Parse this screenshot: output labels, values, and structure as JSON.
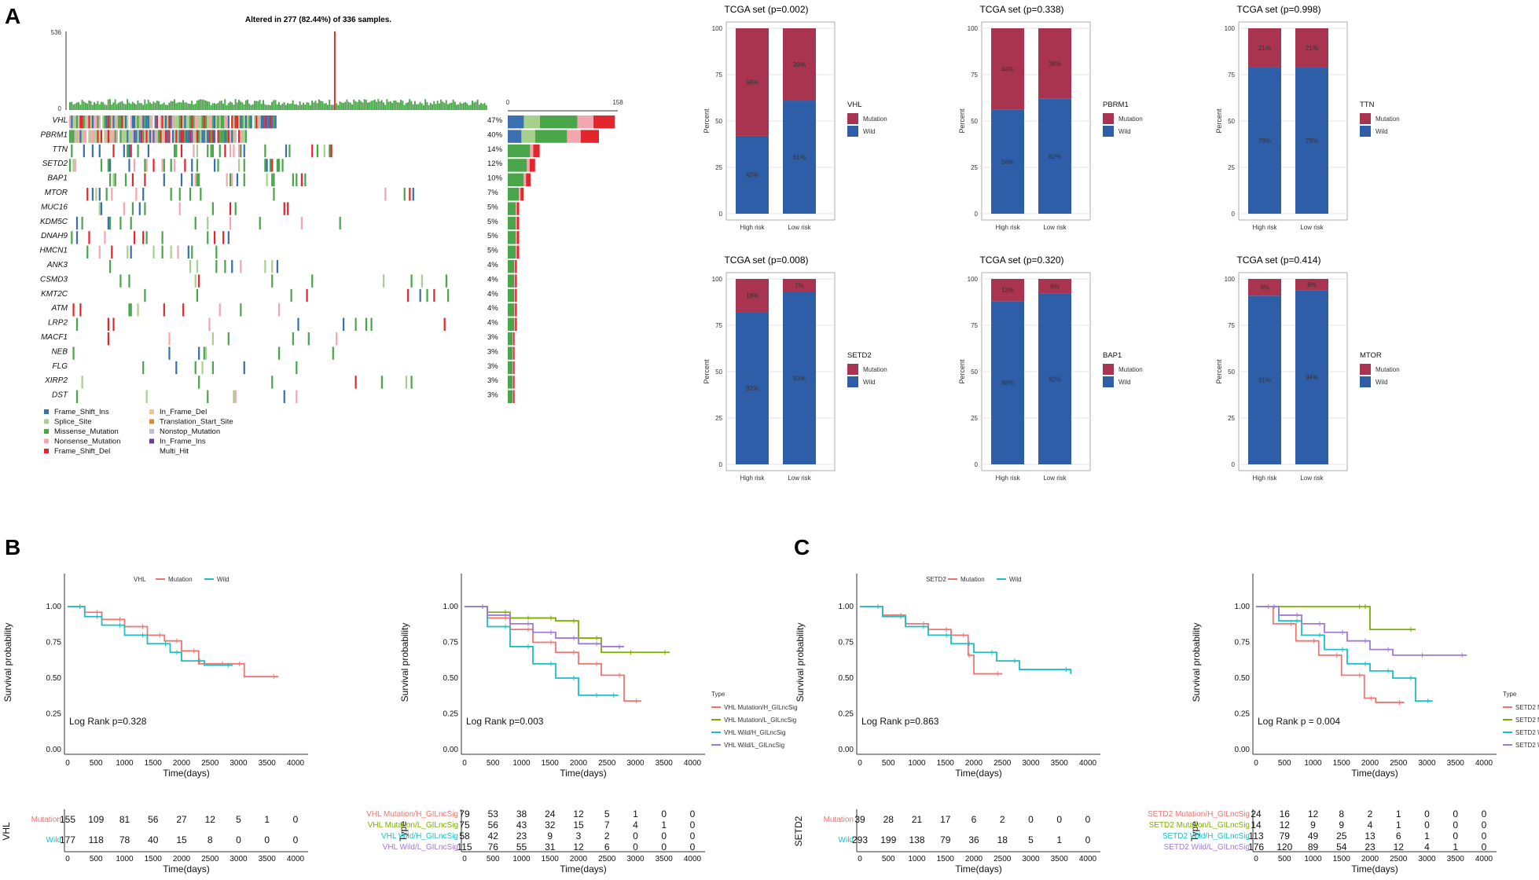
{
  "panels": {
    "a": "A",
    "b": "B",
    "c": "C"
  },
  "oncoplot": {
    "title": "Altered in 277 (82.44%) of 336 samples.",
    "tmb_ymax": "536",
    "tmb_ymin": "0",
    "bar_min": "0",
    "bar_max": "158",
    "genes": [
      {
        "name": "VHL",
        "pct": "47%",
        "freq": 0.47
      },
      {
        "name": "PBRM1",
        "pct": "40%",
        "freq": 0.4
      },
      {
        "name": "TTN",
        "pct": "14%",
        "freq": 0.14
      },
      {
        "name": "SETD2",
        "pct": "12%",
        "freq": 0.12
      },
      {
        "name": "BAP1",
        "pct": "10%",
        "freq": 0.1
      },
      {
        "name": "MTOR",
        "pct": "7%",
        "freq": 0.07
      },
      {
        "name": "MUC16",
        "pct": "5%",
        "freq": 0.05
      },
      {
        "name": "KDM5C",
        "pct": "5%",
        "freq": 0.05
      },
      {
        "name": "DNAH9",
        "pct": "5%",
        "freq": 0.05
      },
      {
        "name": "HMCN1",
        "pct": "5%",
        "freq": 0.05
      },
      {
        "name": "ANK3",
        "pct": "4%",
        "freq": 0.04
      },
      {
        "name": "CSMD3",
        "pct": "4%",
        "freq": 0.04
      },
      {
        "name": "KMT2C",
        "pct": "4%",
        "freq": 0.04
      },
      {
        "name": "ATM",
        "pct": "4%",
        "freq": 0.04
      },
      {
        "name": "LRP2",
        "pct": "4%",
        "freq": 0.04
      },
      {
        "name": "MACF1",
        "pct": "3%",
        "freq": 0.03
      },
      {
        "name": "NEB",
        "pct": "3%",
        "freq": 0.03
      },
      {
        "name": "FLG",
        "pct": "3%",
        "freq": 0.03
      },
      {
        "name": "XIRP2",
        "pct": "3%",
        "freq": 0.03
      },
      {
        "name": "DST",
        "pct": "3%",
        "freq": 0.03
      }
    ],
    "legend": [
      {
        "label": "Frame_Shift_Ins",
        "color": "#3a6fb0"
      },
      {
        "label": "Splice_Site",
        "color": "#a8d08d"
      },
      {
        "label": "Missense_Mutation",
        "color": "#4aa64a"
      },
      {
        "label": "Nonsense_Mutation",
        "color": "#f4a6b0"
      },
      {
        "label": "Frame_Shift_Del",
        "color": "#e3262b"
      },
      {
        "label": "In_Frame_Del",
        "color": "#f8c38a"
      },
      {
        "label": "Translation_Start_Site",
        "color": "#e0883a"
      },
      {
        "label": "Nonstop_Mutation",
        "color": "#c8b4dc"
      },
      {
        "label": "In_Frame_Ins",
        "color": "#6a3d9a"
      },
      {
        "label": "Multi_Hit",
        "color": "#111111"
      }
    ]
  },
  "chart_data": [
    {
      "type": "bar",
      "title": "TCGA set (p=0.002)",
      "gene": "VHL",
      "ylabel": "Percent",
      "categories": [
        "High risk",
        "Low risk"
      ],
      "series": [
        {
          "name": "Mutation",
          "values": [
            58,
            39
          ],
          "labels": [
            "58%",
            "39%"
          ]
        },
        {
          "name": "Wild",
          "values": [
            42,
            61
          ],
          "labels": [
            "42%",
            "61%"
          ]
        }
      ],
      "yticks": [
        "0",
        "25",
        "50",
        "75",
        "100"
      ],
      "ylim": [
        0,
        100
      ]
    },
    {
      "type": "bar",
      "title": "TCGA set (p=0.338)",
      "gene": "PBRM1",
      "ylabel": "Percent",
      "categories": [
        "High risk",
        "Low risk"
      ],
      "series": [
        {
          "name": "Mutation",
          "values": [
            44,
            38
          ],
          "labels": [
            "44%",
            "38%"
          ]
        },
        {
          "name": "Wild",
          "values": [
            56,
            62
          ],
          "labels": [
            "56%",
            "62%"
          ]
        }
      ],
      "yticks": [
        "0",
        "25",
        "50",
        "75",
        "100"
      ],
      "ylim": [
        0,
        100
      ]
    },
    {
      "type": "bar",
      "title": "TCGA set (p=0.998)",
      "gene": "TTN",
      "ylabel": "Percent",
      "categories": [
        "High risk",
        "Low risk"
      ],
      "series": [
        {
          "name": "Mutation",
          "values": [
            21,
            21
          ],
          "labels": [
            "21%",
            "21%"
          ]
        },
        {
          "name": "Wild",
          "values": [
            79,
            79
          ],
          "labels": [
            "79%",
            "79%"
          ]
        }
      ],
      "yticks": [
        "0",
        "25",
        "50",
        "75",
        "100"
      ],
      "ylim": [
        0,
        100
      ]
    },
    {
      "type": "bar",
      "title": "TCGA set (p=0.008)",
      "gene": "SETD2",
      "ylabel": "Percent",
      "categories": [
        "High risk",
        "Low risk"
      ],
      "series": [
        {
          "name": "Mutation",
          "values": [
            18,
            7
          ],
          "labels": [
            "18%",
            "7%"
          ]
        },
        {
          "name": "Wild",
          "values": [
            82,
            93
          ],
          "labels": [
            "82%",
            "93%"
          ]
        }
      ],
      "yticks": [
        "0",
        "25",
        "50",
        "75",
        "100"
      ],
      "ylim": [
        0,
        100
      ]
    },
    {
      "type": "bar",
      "title": "TCGA set (p=0.320)",
      "gene": "BAP1",
      "ylabel": "Percent",
      "categories": [
        "High risk",
        "Low risk"
      ],
      "series": [
        {
          "name": "Mutation",
          "values": [
            12,
            8
          ],
          "labels": [
            "12%",
            "8%"
          ]
        },
        {
          "name": "Wild",
          "values": [
            88,
            92
          ],
          "labels": [
            "88%",
            "92%"
          ]
        }
      ],
      "yticks": [
        "0",
        "25",
        "50",
        "75",
        "100"
      ],
      "ylim": [
        0,
        100
      ]
    },
    {
      "type": "bar",
      "title": "TCGA set (p=0.414)",
      "gene": "MTOR",
      "ylabel": "Percent",
      "categories": [
        "High risk",
        "Low risk"
      ],
      "series": [
        {
          "name": "Mutation",
          "values": [
            9,
            6
          ],
          "labels": [
            "9%",
            "6%"
          ]
        },
        {
          "name": "Wild",
          "values": [
            91,
            94
          ],
          "labels": [
            "91%",
            "94%"
          ]
        }
      ],
      "yticks": [
        "0",
        "25",
        "50",
        "75",
        "100"
      ],
      "ylim": [
        0,
        100
      ]
    },
    {
      "type": "line",
      "title": "VHL",
      "xlabel": "Time(days)",
      "ylabel": "Survival probability",
      "pval": "Log Rank p=0.328",
      "risk_title": "VHL",
      "xticks": [
        "0",
        "500",
        "1000",
        "1500",
        "2000",
        "2500",
        "3000",
        "3500",
        "4000"
      ],
      "yticks": [
        "0.00",
        "0.25",
        "0.50",
        "0.75",
        "1.00"
      ],
      "series": [
        {
          "name": "Mutation",
          "color": "#f07470",
          "x": [
            0,
            300,
            600,
            1000,
            1400,
            1700,
            2000,
            2300,
            2800,
            3100,
            3700
          ],
          "y": [
            1,
            0.96,
            0.91,
            0.86,
            0.8,
            0.76,
            0.69,
            0.6,
            0.6,
            0.51,
            0.51
          ],
          "risk": [
            "155",
            "109",
            "81",
            "56",
            "27",
            "12",
            "5",
            "1",
            "0"
          ]
        },
        {
          "name": "Wild",
          "color": "#1bbfc4",
          "x": [
            0,
            300,
            600,
            1000,
            1400,
            1800,
            2000,
            2400,
            2900
          ],
          "y": [
            1,
            0.93,
            0.87,
            0.8,
            0.74,
            0.68,
            0.62,
            0.59,
            0.59
          ],
          "risk": [
            "177",
            "118",
            "78",
            "40",
            "15",
            "8",
            "0",
            "0",
            "0"
          ]
        }
      ]
    },
    {
      "type": "line",
      "title": "Type",
      "xlabel": "Time(days)",
      "ylabel": "Survival probability",
      "pval": "Log Rank p=0.003",
      "risk_title": "Type",
      "xticks": [
        "0",
        "500",
        "1000",
        "1500",
        "2000",
        "2500",
        "3000",
        "3500",
        "4000"
      ],
      "yticks": [
        "0.00",
        "0.25",
        "0.50",
        "0.75",
        "1.00"
      ],
      "series": [
        {
          "name": "VHL Mutation/H_GILncSig",
          "color": "#f07470",
          "x": [
            0,
            400,
            800,
            1200,
            1600,
            2000,
            2400,
            2800,
            3100
          ],
          "y": [
            1,
            0.92,
            0.84,
            0.75,
            0.68,
            0.6,
            0.52,
            0.34,
            0.34
          ],
          "risk": [
            "79",
            "53",
            "38",
            "24",
            "12",
            "5",
            "1",
            "0",
            "0"
          ]
        },
        {
          "name": "VHL Mutation/L_GILncSig",
          "color": "#7cae00",
          "x": [
            0,
            400,
            800,
            1200,
            1600,
            2000,
            2400,
            3000,
            3600
          ],
          "y": [
            1,
            0.96,
            0.92,
            0.92,
            0.9,
            0.78,
            0.68,
            0.68,
            0.68
          ],
          "risk": [
            "75",
            "56",
            "43",
            "32",
            "15",
            "7",
            "4",
            "1",
            "0"
          ]
        },
        {
          "name": "VHL Wild/H_GILncSig",
          "color": "#1bbfc4",
          "x": [
            0,
            400,
            800,
            1200,
            1600,
            2000,
            2400,
            2700
          ],
          "y": [
            1,
            0.86,
            0.72,
            0.6,
            0.5,
            0.38,
            0.38,
            0.38
          ],
          "risk": [
            "58",
            "42",
            "23",
            "9",
            "3",
            "2",
            "0",
            "0",
            "0"
          ]
        },
        {
          "name": "VHL Wild/L_GILncSig",
          "color": "#a07ad8",
          "x": [
            0,
            400,
            800,
            1200,
            1600,
            2000,
            2400,
            2800
          ],
          "y": [
            1,
            0.94,
            0.88,
            0.82,
            0.78,
            0.74,
            0.72,
            0.72
          ],
          "risk": [
            "115",
            "76",
            "55",
            "31",
            "12",
            "6",
            "0",
            "0",
            "0"
          ]
        }
      ]
    },
    {
      "type": "line",
      "title": "SETD2",
      "xlabel": "Time(days)",
      "ylabel": "Survival probability",
      "pval": "Log Rank p=0.863",
      "risk_title": "SETD2",
      "xticks": [
        "0",
        "500",
        "1000",
        "1500",
        "2000",
        "2500",
        "3000",
        "3500",
        "4000"
      ],
      "yticks": [
        "0.00",
        "0.25",
        "0.50",
        "0.75",
        "1.00"
      ],
      "series": [
        {
          "name": "Mutation",
          "color": "#f07470",
          "x": [
            0,
            400,
            800,
            1200,
            1600,
            1900,
            2000,
            2500
          ],
          "y": [
            1,
            0.94,
            0.88,
            0.84,
            0.8,
            0.66,
            0.53,
            0.53
          ],
          "risk": [
            "39",
            "28",
            "21",
            "17",
            "6",
            "2",
            "0",
            "0",
            "0"
          ]
        },
        {
          "name": "Wild",
          "color": "#1bbfc4",
          "x": [
            0,
            400,
            800,
            1200,
            1600,
            2000,
            2400,
            2800,
            3700
          ],
          "y": [
            1,
            0.93,
            0.86,
            0.8,
            0.74,
            0.68,
            0.62,
            0.56,
            0.53
          ],
          "risk": [
            "293",
            "199",
            "138",
            "79",
            "36",
            "18",
            "5",
            "1",
            "0"
          ]
        }
      ]
    },
    {
      "type": "line",
      "title": "Type",
      "xlabel": "Time(days)",
      "ylabel": "Survival probability",
      "pval": "Log Rank p = 0.004",
      "risk_title": "Type",
      "xticks": [
        "0",
        "500",
        "1000",
        "1500",
        "2000",
        "2500",
        "3000",
        "3500",
        "4000"
      ],
      "yticks": [
        "0.00",
        "0.25",
        "0.50",
        "0.75",
        "1.00"
      ],
      "series": [
        {
          "name": "SETD2 Mutation/H_GILncSig",
          "color": "#f07470",
          "x": [
            0,
            300,
            700,
            1100,
            1500,
            1900,
            2100,
            2600
          ],
          "y": [
            1,
            0.88,
            0.76,
            0.66,
            0.52,
            0.36,
            0.33,
            0.33
          ],
          "risk": [
            "24",
            "16",
            "12",
            "8",
            "2",
            "1",
            "0",
            "0",
            "0"
          ]
        },
        {
          "name": "SETD2 Mutation/L_GILncSig",
          "color": "#7cae00",
          "x": [
            0,
            1900,
            2000,
            2800
          ],
          "y": [
            1,
            1,
            0.84,
            0.84
          ],
          "risk": [
            "14",
            "12",
            "9",
            "9",
            "4",
            "1",
            "0",
            "0",
            "0"
          ]
        },
        {
          "name": "SETD2 Wild/H_GILncSig",
          "color": "#1bbfc4",
          "x": [
            0,
            400,
            800,
            1200,
            1600,
            2000,
            2400,
            2800,
            3100
          ],
          "y": [
            1,
            0.9,
            0.8,
            0.7,
            0.6,
            0.55,
            0.5,
            0.34,
            0.34
          ],
          "risk": [
            "113",
            "79",
            "49",
            "25",
            "13",
            "6",
            "1",
            "0",
            "0"
          ]
        },
        {
          "name": "SETD2 Wild/L_GILncSig",
          "color": "#a07ad8",
          "x": [
            0,
            400,
            800,
            1200,
            1600,
            2000,
            2400,
            3000,
            3700
          ],
          "y": [
            1,
            0.94,
            0.88,
            0.82,
            0.76,
            0.7,
            0.66,
            0.66,
            0.66
          ],
          "risk": [
            "176",
            "120",
            "89",
            "54",
            "23",
            "12",
            "4",
            "1",
            "0"
          ]
        }
      ]
    }
  ],
  "legend_common": {
    "mutation": "Mutation",
    "wild": "Wild",
    "type_title": "Type"
  },
  "colors": {
    "mutation_bar": "#a8344f",
    "wild_bar": "#2f5ea8",
    "tmb": "#4aa64a"
  }
}
